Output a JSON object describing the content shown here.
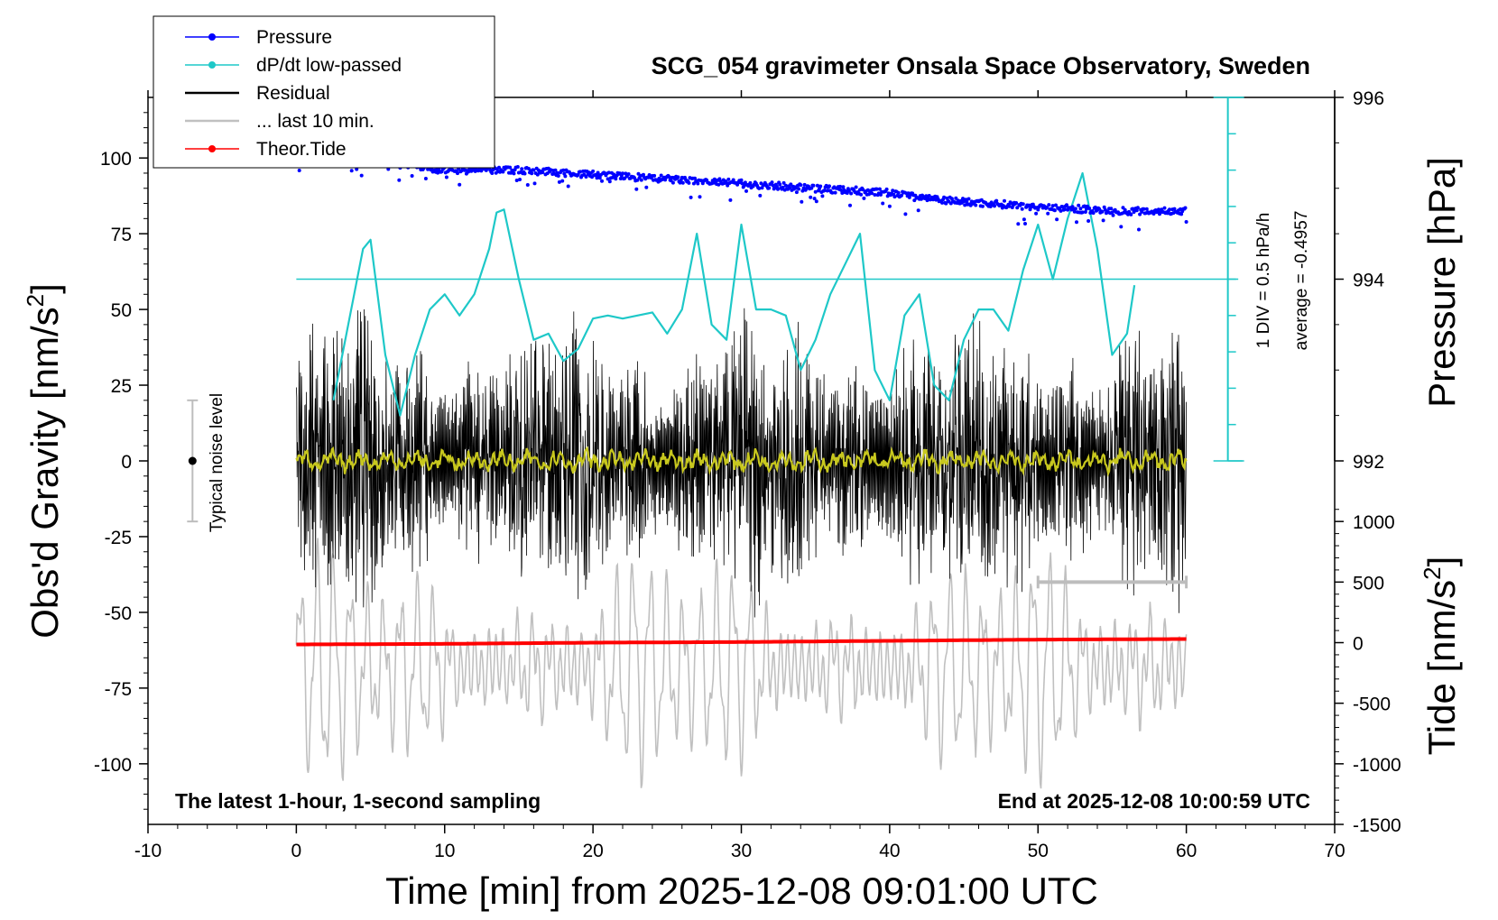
{
  "chart_data": {
    "type": "line",
    "title": "SCG_054 gravimeter Onsala Space Observatory, Sweden",
    "xlabel": "Time [min] from 2025-12-08 09:01:00 UTC",
    "ylabel_left": "Obs'd Gravity [nm/s",
    "ylabel_left_sup": "2",
    "ylabel_left_close": "]",
    "ylabel_right_pressure": "Pressure [hPa]",
    "ylabel_right_tide": "Tide [nm/s",
    "ylabel_right_tide_sup": "2",
    "ylabel_right_tide_close": "]",
    "xlim": [
      -10,
      70
    ],
    "ylim_left": [
      -120,
      120
    ],
    "x_ticks": [
      -10,
      0,
      10,
      20,
      30,
      40,
      50,
      60,
      70
    ],
    "x_tick_labels": [
      "-10",
      "0",
      "10",
      "20",
      "30",
      "40",
      "50",
      "60",
      "70"
    ],
    "y_left_ticks": [
      100,
      75,
      50,
      25,
      0,
      -25,
      -50,
      -75,
      -100
    ],
    "y_left_tick_labels": [
      "100",
      "75",
      "50",
      "25",
      "0",
      "-25",
      "-50",
      "-75",
      "-100"
    ],
    "pressure_axis": {
      "ticks": [
        996,
        994,
        992
      ],
      "tick_labels": [
        "996",
        "994",
        "992"
      ],
      "gravity_at_994": 60,
      "gravity_per_hpa": 30
    },
    "tide_axis": {
      "ticks": [
        1000,
        500,
        0,
        -500,
        -1000,
        -1500
      ],
      "tick_labels": [
        "1000",
        "500",
        "0",
        "-500",
        "-1000",
        "-1500"
      ],
      "gravity_at_0": -60,
      "gravity_per_500": 20
    },
    "dpdt_scale": {
      "label_div": "1 DIV = 0.5 hPa/h",
      "label_avg": "average = -0.4957",
      "ymin": 0,
      "ymax": 120,
      "div_gravity": 12
    },
    "legend": {
      "position": "top-left",
      "entries": [
        {
          "name": "Pressure",
          "color": "#0000ff",
          "marker": true
        },
        {
          "name": "dP/dt low-passed",
          "color": "#1ec8c8",
          "marker": true
        },
        {
          "name": "Residual",
          "color": "#000000",
          "marker": false
        },
        {
          "name": "... last 10 min.",
          "color": "#c0c0c0",
          "marker": false
        },
        {
          "name": "Theor.Tide",
          "color": "#ff0000",
          "marker": true
        }
      ]
    },
    "series": [
      {
        "name": "Pressure",
        "color": "#0000ff",
        "axis": "pressure",
        "x": [
          0,
          5,
          10,
          15,
          20,
          25,
          30,
          35,
          40,
          45,
          50,
          55,
          60
        ],
        "y": [
          995.4,
          995.3,
          995.2,
          995.2,
          995.15,
          995.1,
          995.05,
          995.0,
          994.95,
          994.85,
          994.8,
          994.75,
          994.75
        ]
      },
      {
        "name": "dP/dt low-passed",
        "color": "#1ec8c8",
        "axis": "gravity",
        "x": [
          2.5,
          3.5,
          4.5,
          5,
          6,
          7,
          8,
          9,
          10,
          11,
          12,
          13,
          13.5,
          14,
          15,
          16,
          17,
          18,
          19,
          20,
          21,
          22,
          23,
          24,
          25,
          26,
          27,
          28,
          29,
          30,
          31,
          32,
          33,
          34,
          35,
          36,
          37,
          38,
          39,
          40,
          41,
          42,
          43,
          44,
          45,
          46,
          47,
          48,
          49,
          50,
          51,
          52,
          53,
          54,
          55,
          56,
          56.5
        ],
        "y": [
          20,
          45,
          70,
          73,
          35,
          15,
          35,
          50,
          55,
          48,
          55,
          70,
          82,
          83,
          60,
          40,
          42,
          33,
          37,
          47,
          48,
          47,
          48,
          49,
          42,
          50,
          75,
          45,
          40,
          78,
          50,
          50,
          48,
          30,
          40,
          55,
          65,
          75,
          30,
          20,
          48,
          55,
          25,
          20,
          40,
          50,
          50,
          43,
          63,
          78,
          60,
          80,
          95,
          70,
          35,
          42,
          58
        ]
      },
      {
        "name": "Theor.Tide",
        "color": "#ff0000",
        "axis": "tide",
        "x": [
          0,
          10,
          20,
          30,
          40,
          50,
          60
        ],
        "y": [
          -15,
          -10,
          0,
          5,
          15,
          25,
          30
        ]
      }
    ],
    "residual": {
      "amplitude_typical": 30,
      "noise_seed": 7
    },
    "typical_noise": {
      "label": "Typical noise level",
      "x": -7,
      "center": 0,
      "half_range": 20
    },
    "last10_bar": {
      "x_start": 50,
      "x_end": 60,
      "y": -40
    },
    "note_left": "The latest 1-hour, 1-second sampling",
    "note_right": "End at 2025-12-08 10:00:59 UTC"
  }
}
